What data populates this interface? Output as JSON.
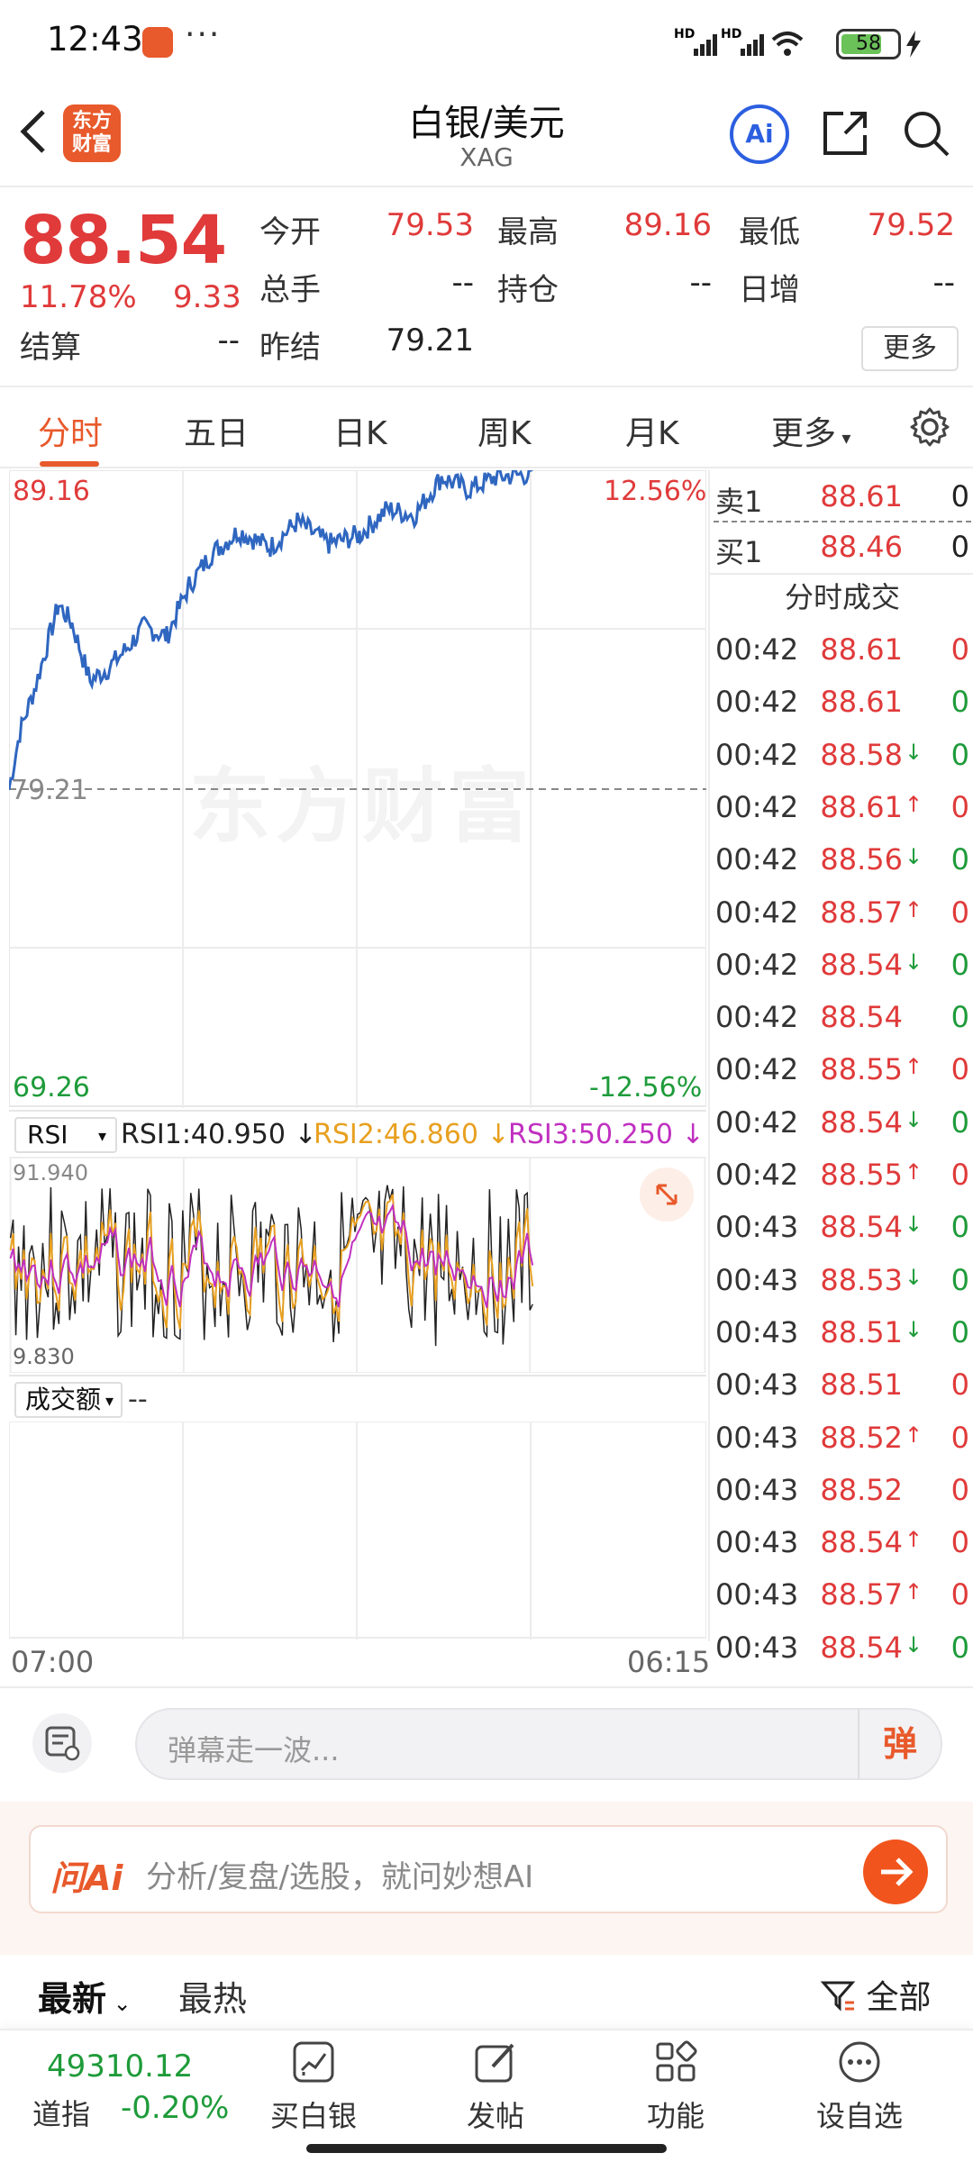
{
  "status_bar": {
    "time": "12:43",
    "more": "···",
    "battery": "58"
  },
  "header": {
    "title": "白银/美元",
    "subtitle": "XAG",
    "logo_text": "东方财富",
    "ai_label": "Ai"
  },
  "quote": {
    "price": "88.54",
    "change_pct": "11.78%",
    "change": "9.33",
    "open_label": "今开",
    "open": "79.53",
    "high_label": "最高",
    "high": "89.16",
    "low_label": "最低",
    "low": "79.52",
    "volume_label": "总手",
    "volume": "--",
    "position_label": "持仓",
    "position": "--",
    "daily_inc_label": "日增",
    "daily_inc": "--",
    "settle_label": "结算",
    "settle": "--",
    "prev_settle_label": "昨结",
    "prev_settle": "79.21",
    "more_label": "更多"
  },
  "tabs": [
    "分时",
    "五日",
    "日K",
    "周K",
    "月K",
    "更多"
  ],
  "chart": {
    "max_label": "89.16",
    "max_pct": "12.56%",
    "ref_label": "79.21",
    "min_label": "69.26",
    "min_pct": "-12.56%",
    "watermark": "东方财富",
    "start_time": "07:00",
    "end_time": "06:15"
  },
  "rsi": {
    "selector": "RSI",
    "rsi1": "RSI1:40.950",
    "rsi2": "RSI2:46.860",
    "rsi3": "RSI3:50.250",
    "top_label": "91.940",
    "bottom_label": "9.830",
    "colors": {
      "rsi1": "#222222",
      "rsi2": "#e8a020",
      "rsi3": "#c030c0"
    }
  },
  "volume": {
    "selector": "成交额",
    "value": "--"
  },
  "order_book": {
    "sell": {
      "label": "卖1",
      "price": "88.61",
      "qty": "0"
    },
    "buy": {
      "label": "买1",
      "price": "88.46",
      "qty": "0"
    },
    "ticks_title": "分时成交",
    "ticks": [
      {
        "time": "00:42",
        "price": "88.61",
        "arrow": "",
        "qty": "0",
        "qcolor": "red"
      },
      {
        "time": "00:42",
        "price": "88.61",
        "arrow": "",
        "qty": "0",
        "qcolor": "green"
      },
      {
        "time": "00:42",
        "price": "88.58",
        "arrow": "↓",
        "qty": "0",
        "qcolor": "green"
      },
      {
        "time": "00:42",
        "price": "88.61",
        "arrow": "↑",
        "qty": "0",
        "qcolor": "red"
      },
      {
        "time": "00:42",
        "price": "88.56",
        "arrow": "↓",
        "qty": "0",
        "qcolor": "green"
      },
      {
        "time": "00:42",
        "price": "88.57",
        "arrow": "↑",
        "qty": "0",
        "qcolor": "red"
      },
      {
        "time": "00:42",
        "price": "88.54",
        "arrow": "↓",
        "qty": "0",
        "qcolor": "green"
      },
      {
        "time": "00:42",
        "price": "88.54",
        "arrow": "",
        "qty": "0",
        "qcolor": "green"
      },
      {
        "time": "00:42",
        "price": "88.55",
        "arrow": "↑",
        "qty": "0",
        "qcolor": "red"
      },
      {
        "time": "00:42",
        "price": "88.54",
        "arrow": "↓",
        "qty": "0",
        "qcolor": "green"
      },
      {
        "time": "00:42",
        "price": "88.55",
        "arrow": "↑",
        "qty": "0",
        "qcolor": "red"
      },
      {
        "time": "00:43",
        "price": "88.54",
        "arrow": "↓",
        "qty": "0",
        "qcolor": "green"
      },
      {
        "time": "00:43",
        "price": "88.53",
        "arrow": "↓",
        "qty": "0",
        "qcolor": "green"
      },
      {
        "time": "00:43",
        "price": "88.51",
        "arrow": "↓",
        "qty": "0",
        "qcolor": "green"
      },
      {
        "time": "00:43",
        "price": "88.51",
        "arrow": "",
        "qty": "0",
        "qcolor": "red"
      },
      {
        "time": "00:43",
        "price": "88.52",
        "arrow": "↑",
        "qty": "0",
        "qcolor": "red"
      },
      {
        "time": "00:43",
        "price": "88.52",
        "arrow": "",
        "qty": "0",
        "qcolor": "red"
      },
      {
        "time": "00:43",
        "price": "88.54",
        "arrow": "↑",
        "qty": "0",
        "qcolor": "red"
      },
      {
        "time": "00:43",
        "price": "88.57",
        "arrow": "↑",
        "qty": "0",
        "qcolor": "red"
      },
      {
        "time": "00:43",
        "price": "88.54",
        "arrow": "↓",
        "qty": "0",
        "qcolor": "green"
      }
    ]
  },
  "comment": {
    "placeholder": "弹幕走一波...",
    "danmu": "弹"
  },
  "ask_ai": {
    "brand": "问Ai",
    "placeholder": "分析/复盘/选股，就问妙想AI"
  },
  "feed": {
    "latest": "最新",
    "hot": "最热",
    "filter": "全部"
  },
  "bottom_nav": {
    "index_value": "49310.12",
    "index_name": "道指",
    "index_change": "-0.20%",
    "items": [
      "买白银",
      "发帖",
      "功能",
      "设自选"
    ]
  },
  "colors": {
    "up": "#e03a3a",
    "down": "#1e9b3a",
    "accent": "#e8592b",
    "line": "#2f66c0"
  }
}
